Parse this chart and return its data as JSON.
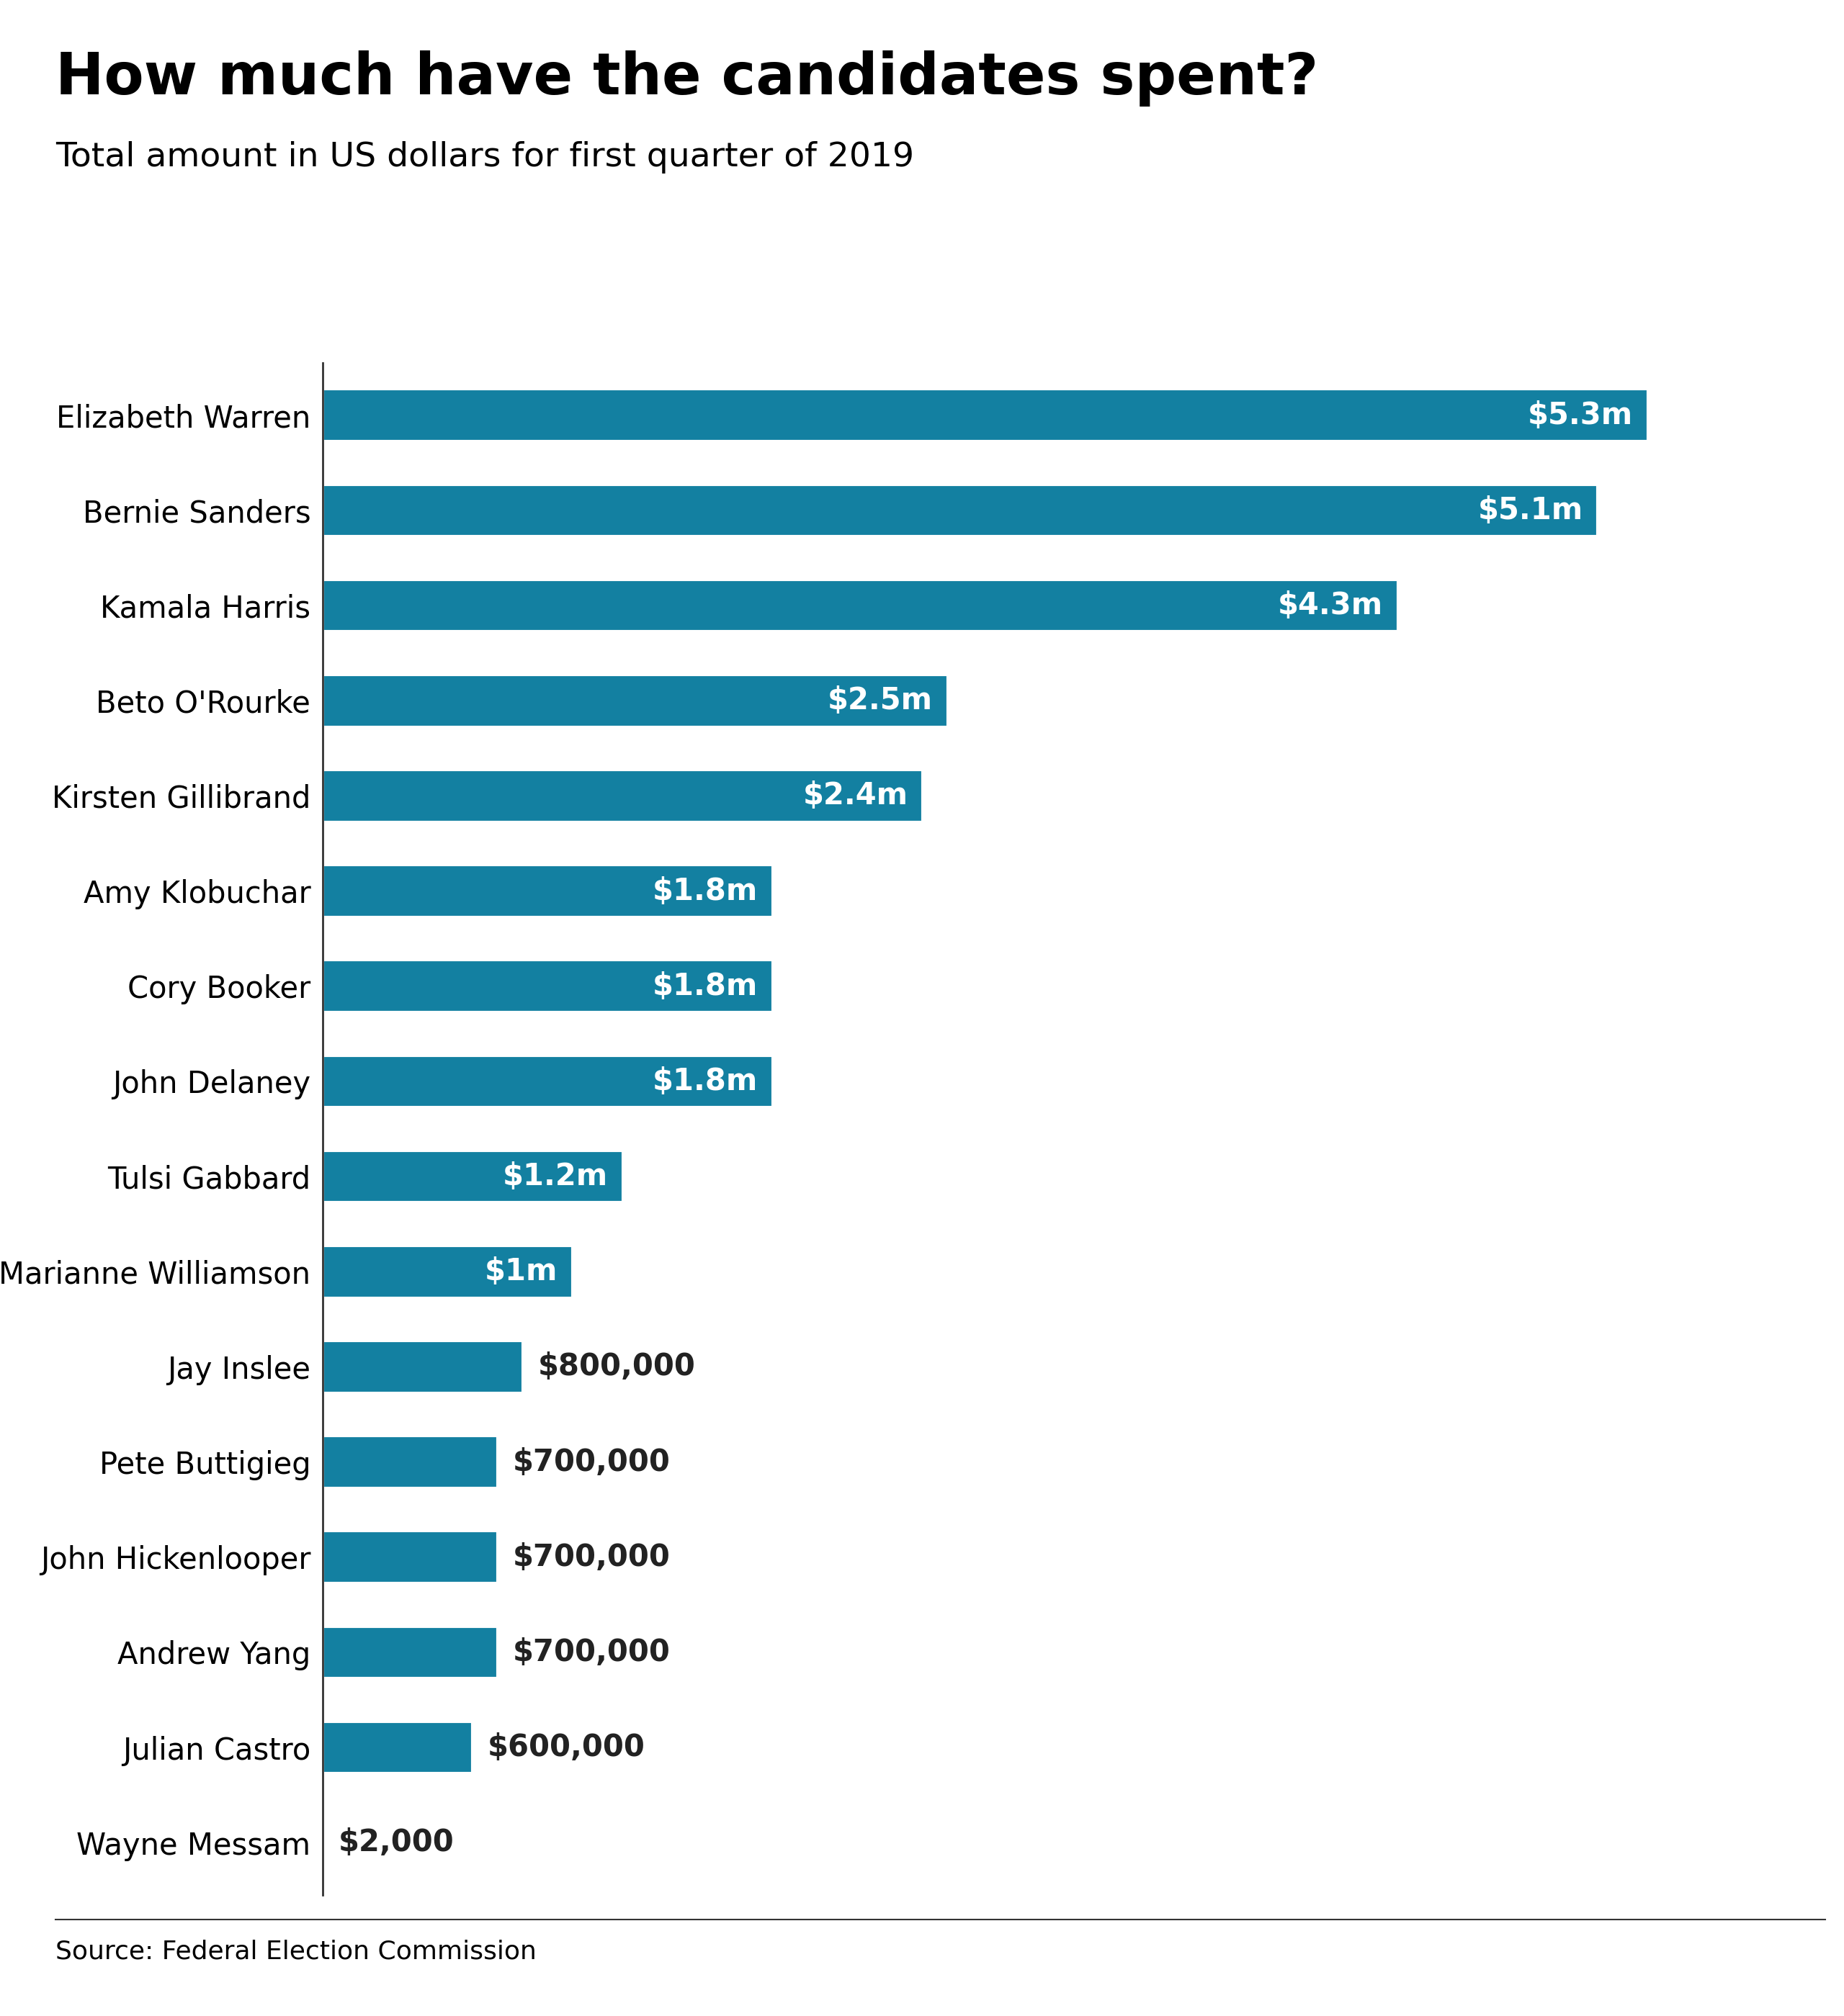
{
  "title": "How much have the candidates spent?",
  "subtitle": "Total amount in US dollars for first quarter of 2019",
  "source": "Source: Federal Election Commission",
  "candidates": [
    "Elizabeth Warren",
    "Bernie Sanders",
    "Kamala Harris",
    "Beto O'Rourke",
    "Kirsten Gillibrand",
    "Amy Klobuchar",
    "Cory Booker",
    "John Delaney",
    "Tulsi Gabbard",
    "Marianne Williamson",
    "Jay Inslee",
    "Pete Buttigieg",
    "John Hickenlooper",
    "Andrew Yang",
    "Julian Castro",
    "Wayne Messam"
  ],
  "values": [
    5300000,
    5100000,
    4300000,
    2500000,
    2400000,
    1800000,
    1800000,
    1800000,
    1200000,
    1000000,
    800000,
    700000,
    700000,
    700000,
    600000,
    2000
  ],
  "labels": [
    "$5.3m",
    "$5.1m",
    "$4.3m",
    "$2.5m",
    "$2.4m",
    "$1.8m",
    "$1.8m",
    "$1.8m",
    "$1.2m",
    "$1m",
    "$800,000",
    "$700,000",
    "$700,000",
    "$700,000",
    "$600,000",
    "$2,000"
  ],
  "bar_color": "#1380A1",
  "label_color_inside": "#ffffff",
  "label_color_outside": "#222222",
  "label_threshold": 900000,
  "background_color": "#ffffff",
  "title_fontsize": 58,
  "subtitle_fontsize": 34,
  "candidate_fontsize": 30,
  "label_fontsize": 30,
  "source_fontsize": 26,
  "xlim": [
    0,
    5900000
  ],
  "bar_height": 0.55,
  "bbc_box_color": "#404040",
  "bbc_text_color": "#ffffff"
}
